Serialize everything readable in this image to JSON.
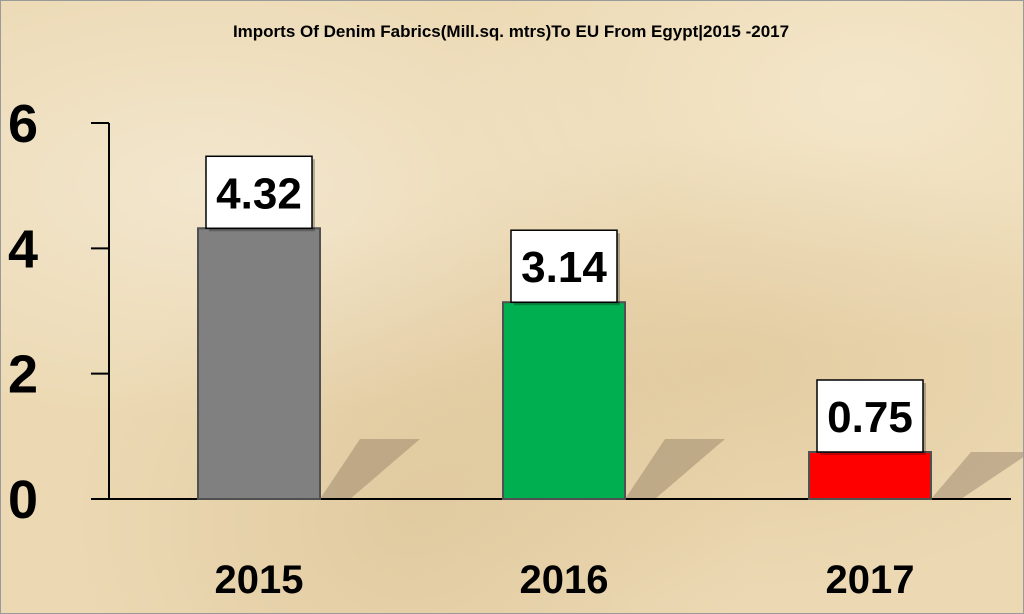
{
  "chart_data": {
    "type": "bar",
    "title": "Imports Of Denim Fabrics(Mill.sq. mtrs)To EU From Egypt|2015 -2017",
    "categories": [
      "2015",
      "2016",
      "2017"
    ],
    "values": [
      4.32,
      3.14,
      0.75
    ],
    "data_labels": [
      "4.32",
      "3.14",
      "0.75"
    ],
    "bar_colors": [
      "#808080",
      "#00b050",
      "#ff0000"
    ],
    "yticks": [
      "0",
      "2",
      "4",
      "6"
    ],
    "ylim": [
      0,
      6
    ],
    "xlabel": "",
    "ylabel": "",
    "grid": false,
    "legend": "none"
  }
}
